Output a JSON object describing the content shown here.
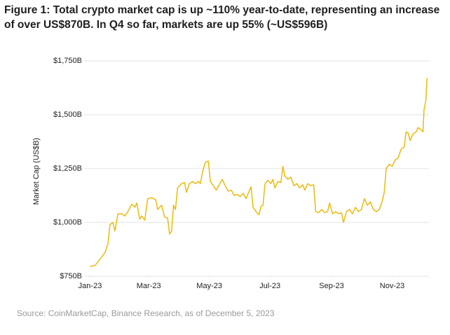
{
  "chart_data": {
    "type": "line",
    "title": "Figure 1: Total crypto market cap is up ~110% year-to-date, representing an increase of over US$870B. In Q4 so far, markets are up 55% (~US$596B)",
    "ylabel": "Market Cap (US$B)",
    "source": "Source: CoinMarketCap, Binance Research, as of December 5, 2023",
    "color": "#f0b90b",
    "grid": true,
    "xlim": [
      -6,
      341
    ],
    "ylim": [
      750,
      1750
    ],
    "xticks": [
      {
        "value": 0,
        "label": "Jan-23"
      },
      {
        "value": 59,
        "label": "Mar-23"
      },
      {
        "value": 120,
        "label": "May-23"
      },
      {
        "value": 181,
        "label": "Jul-23"
      },
      {
        "value": 243,
        "label": "Sep-23"
      },
      {
        "value": 304,
        "label": "Nov-23"
      }
    ],
    "yticks": [
      {
        "value": 750,
        "label": "$750B"
      },
      {
        "value": 1000,
        "label": "$1,000B"
      },
      {
        "value": 1250,
        "label": "$1,250B"
      },
      {
        "value": 1500,
        "label": "$1,500B"
      },
      {
        "value": 1750,
        "label": "$1,750B"
      }
    ],
    "x": [
      0,
      5,
      10,
      15,
      18,
      20,
      23,
      25,
      28,
      32,
      35,
      38,
      42,
      45,
      47,
      50,
      52,
      55,
      58,
      62,
      66,
      68,
      72,
      75,
      78,
      80,
      82,
      84,
      86,
      88,
      92,
      95,
      97,
      100,
      103,
      106,
      109,
      111,
      113,
      116,
      119,
      121,
      124,
      127,
      130,
      133,
      136,
      139,
      142,
      145,
      148,
      151,
      154,
      157,
      160,
      162,
      164,
      167,
      170,
      172,
      174,
      176,
      179,
      182,
      184,
      186,
      189,
      192,
      194,
      196,
      199,
      202,
      205,
      208,
      211,
      214,
      216,
      219,
      222,
      225,
      227,
      230,
      233,
      236,
      239,
      241,
      244,
      247,
      250,
      253,
      255,
      258,
      261,
      264,
      267,
      270,
      273,
      276,
      279,
      282,
      285,
      288,
      291,
      294,
      296,
      298,
      301,
      304,
      307,
      310,
      313,
      316,
      318,
      320,
      322,
      325,
      328,
      330,
      333,
      335,
      336,
      338,
      339
    ],
    "values": [
      795,
      800,
      830,
      860,
      900,
      990,
      1000,
      960,
      1040,
      1040,
      1030,
      1050,
      1085,
      1070,
      1090,
      1015,
      1030,
      1010,
      1110,
      1115,
      1105,
      1060,
      1080,
      1025,
      1020,
      945,
      960,
      1080,
      1060,
      1160,
      1180,
      1185,
      1140,
      1180,
      1190,
      1180,
      1190,
      1180,
      1230,
      1280,
      1285,
      1190,
      1170,
      1150,
      1175,
      1200,
      1170,
      1145,
      1150,
      1125,
      1130,
      1120,
      1135,
      1110,
      1145,
      1165,
      1070,
      1050,
      1035,
      1075,
      1080,
      1180,
      1195,
      1180,
      1200,
      1160,
      1190,
      1185,
      1260,
      1215,
      1200,
      1210,
      1170,
      1180,
      1160,
      1175,
      1150,
      1180,
      1170,
      1175,
      1050,
      1045,
      1060,
      1045,
      1050,
      1090,
      1040,
      1050,
      1040,
      1045,
      1000,
      1050,
      1060,
      1040,
      1070,
      1050,
      1060,
      1110,
      1080,
      1095,
      1060,
      1050,
      1060,
      1100,
      1140,
      1250,
      1270,
      1260,
      1290,
      1300,
      1340,
      1350,
      1420,
      1415,
      1380,
      1410,
      1420,
      1440,
      1430,
      1420,
      1520,
      1570,
      1670
    ]
  }
}
